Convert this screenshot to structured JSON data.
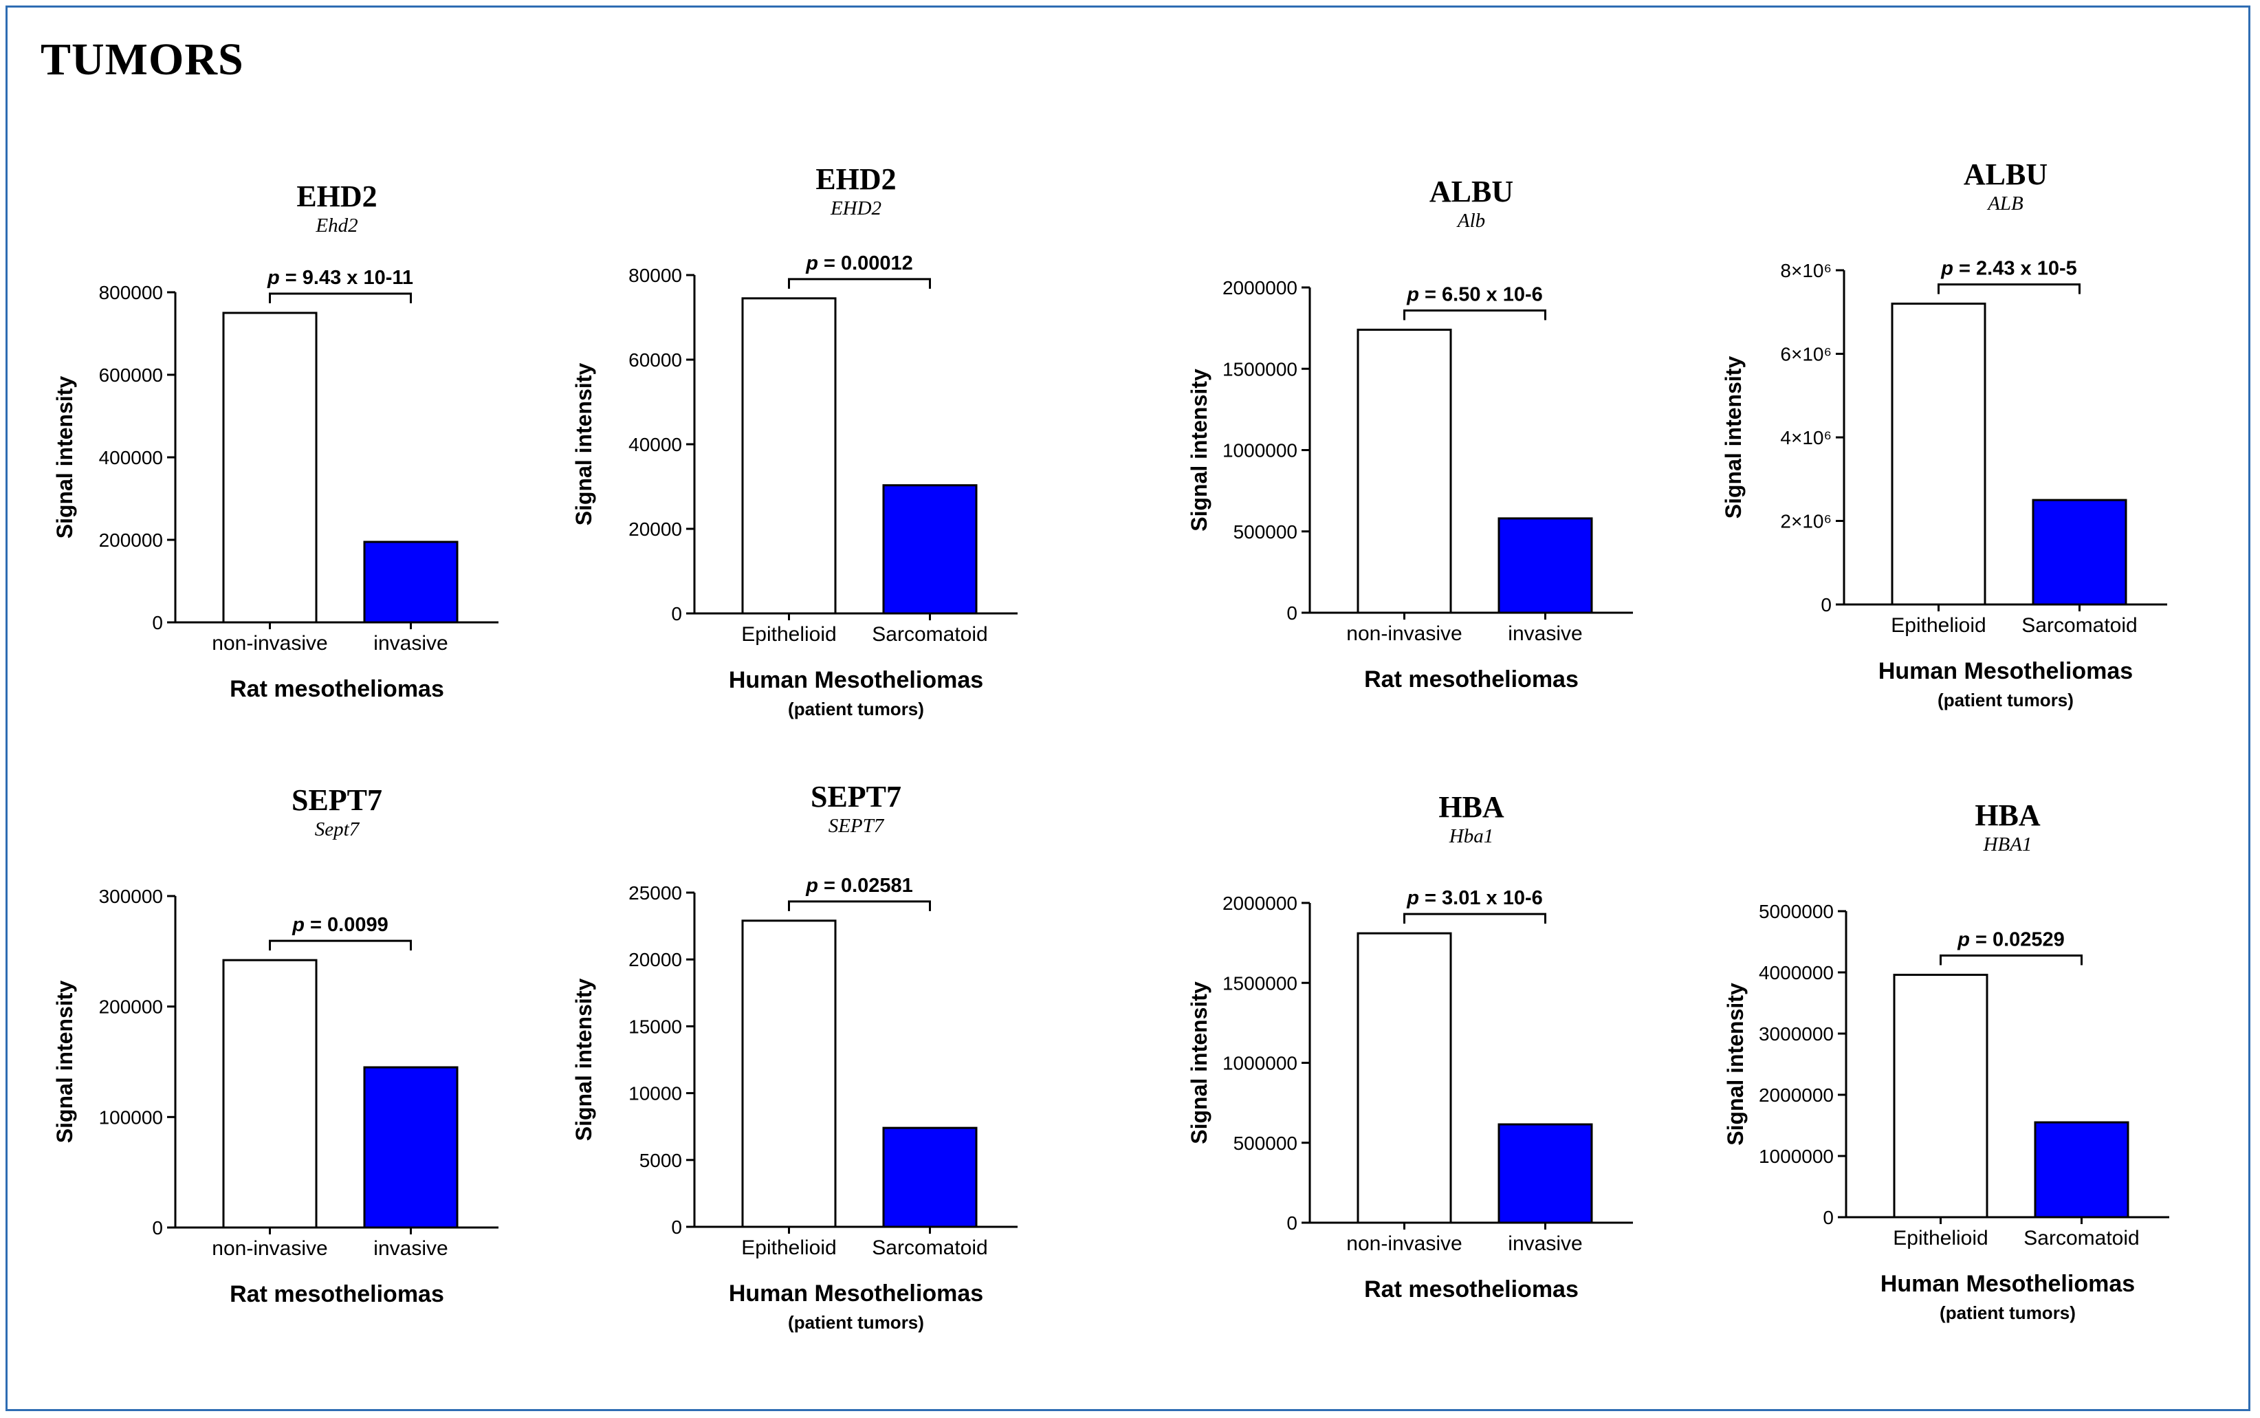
{
  "page": {
    "title": "TUMORS"
  },
  "chart_data": [
    {
      "type": "bar",
      "title": "EHD2",
      "subtitle": "Ehd2",
      "categories": [
        "non-invasive",
        "invasive"
      ],
      "values": [
        750000,
        195000
      ],
      "ylim": [
        0,
        800000
      ],
      "yticks": [
        0,
        200000,
        400000,
        600000,
        800000
      ],
      "ytick_labels": [
        "0",
        "200000",
        "400000",
        "600000",
        "800000"
      ],
      "ylabel": "Signal intensity",
      "xlabel": "Rat mesotheliomas",
      "xlabel_sub": "",
      "pvalue": {
        "prefix": "p",
        "text": " = 9.43 x 10-11"
      },
      "colors": [
        "#ffffff",
        "#0000ff"
      ]
    },
    {
      "type": "bar",
      "title": "EHD2",
      "subtitle": "EHD2",
      "categories": [
        "Epithelioid",
        "Sarcomatoid"
      ],
      "values": [
        74500,
        30300
      ],
      "ylim": [
        0,
        80000
      ],
      "yticks": [
        0,
        20000,
        40000,
        60000,
        80000
      ],
      "ytick_labels": [
        "0",
        "20000",
        "40000",
        "60000",
        "80000"
      ],
      "ylabel": "Signal intensity",
      "xlabel": "Human Mesotheliomas",
      "xlabel_sub": "(patient tumors)",
      "pvalue": {
        "prefix": "p",
        "text": " = 0.00012"
      },
      "colors": [
        "#ffffff",
        "#0000ff"
      ]
    },
    {
      "type": "bar",
      "title": "ALBU",
      "subtitle": "Alb",
      "categories": [
        "non-invasive",
        "invasive"
      ],
      "values": [
        1740000,
        580000
      ],
      "ylim": [
        0,
        2000000
      ],
      "yticks": [
        0,
        500000,
        1000000,
        1500000,
        2000000
      ],
      "ytick_labels": [
        "0",
        "500000",
        "1000000",
        "1500000",
        "2000000"
      ],
      "ylabel": "Signal intensity",
      "xlabel": "Rat mesotheliomas",
      "xlabel_sub": "",
      "pvalue": {
        "prefix": "p",
        "text": " = 6.50 x 10-6"
      },
      "colors": [
        "#ffffff",
        "#0000ff"
      ]
    },
    {
      "type": "bar",
      "title": "ALBU",
      "subtitle": "ALB",
      "categories": [
        "Epithelioid",
        "Sarcomatoid"
      ],
      "values": [
        7200000,
        2500000
      ],
      "ylim": [
        0,
        8000000
      ],
      "yticks": [
        0,
        2000000,
        4000000,
        6000000,
        8000000
      ],
      "ytick_labels": [
        "0",
        "2×10⁶",
        "4×10⁶",
        "6×10⁶",
        "8×10⁶"
      ],
      "ylabel": "Signal intensity",
      "xlabel": "Human Mesotheliomas",
      "xlabel_sub": "(patient tumors)",
      "pvalue": {
        "prefix": "p",
        "text": " = 2.43 x 10-5"
      },
      "colors": [
        "#ffffff",
        "#0000ff"
      ]
    },
    {
      "type": "bar",
      "title": "SEPT7",
      "subtitle": "Sept7",
      "categories": [
        "non-invasive",
        "invasive"
      ],
      "values": [
        242000,
        145000
      ],
      "ylim": [
        0,
        300000
      ],
      "yticks": [
        0,
        100000,
        200000,
        300000
      ],
      "ytick_labels": [
        "0",
        "100000",
        "200000",
        "300000"
      ],
      "ylabel": "Signal intensity",
      "xlabel": "Rat mesotheliomas",
      "xlabel_sub": "",
      "pvalue": {
        "prefix": "p",
        "text": " = 0.0099"
      },
      "colors": [
        "#ffffff",
        "#0000ff"
      ]
    },
    {
      "type": "bar",
      "title": "SEPT7",
      "subtitle": "SEPT7",
      "categories": [
        "Epithelioid",
        "Sarcomatoid"
      ],
      "values": [
        22900,
        7400
      ],
      "ylim": [
        0,
        25000
      ],
      "yticks": [
        0,
        5000,
        10000,
        15000,
        20000,
        25000
      ],
      "ytick_labels": [
        "0",
        "5000",
        "10000",
        "15000",
        "20000",
        "25000"
      ],
      "ylabel": "Signal intensity",
      "xlabel": "Human Mesotheliomas",
      "xlabel_sub": "(patient tumors)",
      "pvalue": {
        "prefix": "p",
        "text": " = 0.02581"
      },
      "colors": [
        "#ffffff",
        "#0000ff"
      ]
    },
    {
      "type": "bar",
      "title": "HBA",
      "subtitle": "Hba1",
      "categories": [
        "non-invasive",
        "invasive"
      ],
      "values": [
        1810000,
        615000
      ],
      "ylim": [
        0,
        2000000
      ],
      "yticks": [
        0,
        500000,
        1000000,
        1500000,
        2000000
      ],
      "ytick_labels": [
        "0",
        "500000",
        "1000000",
        "1500000",
        "2000000"
      ],
      "ylabel": "Signal intensity",
      "xlabel": "Rat mesotheliomas",
      "xlabel_sub": "",
      "pvalue": {
        "prefix": "p",
        "text": " = 3.01 x 10-6"
      },
      "colors": [
        "#ffffff",
        "#0000ff"
      ]
    },
    {
      "type": "bar",
      "title": "HBA",
      "subtitle": "HBA1",
      "categories": [
        "Epithelioid",
        "Sarcomatoid"
      ],
      "values": [
        3960000,
        1550000
      ],
      "ylim": [
        0,
        5000000
      ],
      "yticks": [
        0,
        1000000,
        2000000,
        3000000,
        4000000,
        5000000
      ],
      "ytick_labels": [
        "0",
        "1000000",
        "2000000",
        "3000000",
        "4000000",
        "5000000"
      ],
      "ylabel": "Signal intensity",
      "xlabel": "Human Mesotheliomas",
      "xlabel_sub": "(patient tumors)",
      "pvalue": {
        "prefix": "p",
        "text": " = 0.02529"
      },
      "colors": [
        "#ffffff",
        "#0000ff"
      ]
    }
  ]
}
